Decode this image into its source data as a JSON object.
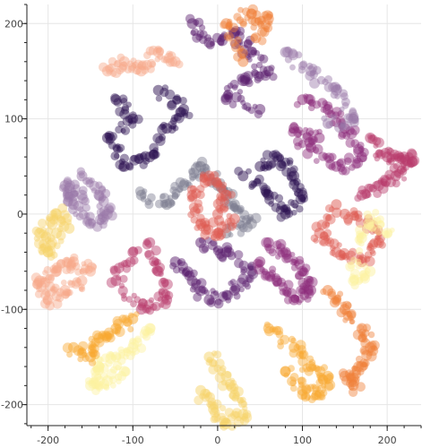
{
  "chart_data": {
    "type": "scatter",
    "title": "",
    "xlabel": "",
    "ylabel": "",
    "xlim": [
      -225,
      240
    ],
    "ylim": [
      -222,
      220
    ],
    "grid": true,
    "legend": "none",
    "x_ticks": [
      {
        "value": -200,
        "label": "-200"
      },
      {
        "value": -100,
        "label": "-100"
      },
      {
        "value": 0,
        "label": "0"
      },
      {
        "value": 100,
        "label": "100"
      },
      {
        "value": 200,
        "label": "200"
      }
    ],
    "y_ticks": [
      {
        "value": 200,
        "label": "200"
      },
      {
        "value": 100,
        "label": "100"
      },
      {
        "value": 0,
        "label": "0"
      },
      {
        "value": -100,
        "label": "-100"
      },
      {
        "value": -200,
        "label": "-200"
      }
    ],
    "colors": {
      "palette": [
        "#2d1152",
        "#5b1f6e",
        "#8c2a7a",
        "#b83a6b",
        "#de5a52",
        "#f0803a",
        "#f8a830",
        "#f6d36a",
        "#fcf2a0",
        "#f7a88a",
        "#9a78a8",
        "#7d7d90"
      ],
      "grid": "#e6e6e6",
      "axis": "#222222"
    },
    "series": [
      {
        "points": [
          [
            -120,
            120
          ],
          [
            -100,
            100
          ],
          [
            -130,
            80
          ],
          [
            -110,
            50
          ],
          [
            -80,
            60
          ],
          [
            -60,
            90
          ],
          [
            -40,
            110
          ],
          [
            -70,
            130
          ]
        ]
      },
      {
        "points": [
          [
            -30,
            200
          ],
          [
            -10,
            180
          ],
          [
            20,
            190
          ],
          [
            40,
            170
          ],
          [
            60,
            150
          ],
          [
            30,
            140
          ],
          [
            10,
            120
          ],
          [
            50,
            110
          ]
        ]
      },
      {
        "points": [
          [
            100,
            120
          ],
          [
            130,
            110
          ],
          [
            150,
            90
          ],
          [
            170,
            60
          ],
          [
            140,
            50
          ],
          [
            110,
            70
          ],
          [
            90,
            90
          ],
          [
            120,
            80
          ]
        ]
      },
      {
        "points": [
          [
            180,
            80
          ],
          [
            200,
            60
          ],
          [
            220,
            60
          ],
          [
            230,
            55
          ],
          [
            210,
            40
          ],
          [
            190,
            30
          ],
          [
            170,
            20
          ]
        ]
      },
      {
        "points": [
          [
            150,
            0
          ],
          [
            180,
            -10
          ],
          [
            190,
            -30
          ],
          [
            170,
            -50
          ],
          [
            140,
            -40
          ],
          [
            120,
            -20
          ],
          [
            140,
            10
          ]
        ]
      },
      {
        "points": [
          [
            130,
            -80
          ],
          [
            150,
            -100
          ],
          [
            170,
            -120
          ],
          [
            180,
            -140
          ],
          [
            170,
            -160
          ],
          [
            160,
            -180
          ],
          [
            150,
            -170
          ]
        ]
      },
      {
        "points": [
          [
            60,
            -120
          ],
          [
            90,
            -140
          ],
          [
            110,
            -160
          ],
          [
            130,
            -170
          ],
          [
            120,
            -190
          ],
          [
            100,
            -185
          ],
          [
            80,
            -165
          ]
        ]
      },
      {
        "points": [
          [
            -10,
            -150
          ],
          [
            10,
            -170
          ],
          [
            20,
            -190
          ],
          [
            30,
            -210
          ],
          [
            10,
            -220
          ],
          [
            -5,
            -205
          ],
          [
            -20,
            -185
          ]
        ]
      },
      {
        "points": [
          [
            -80,
            -120
          ],
          [
            -100,
            -140
          ],
          [
            -120,
            -150
          ],
          [
            -140,
            -160
          ],
          [
            -150,
            -180
          ],
          [
            -130,
            -175
          ],
          [
            -110,
            -165
          ]
        ]
      },
      {
        "points": [
          [
            -150,
            -60
          ],
          [
            -170,
            -50
          ],
          [
            -190,
            -60
          ],
          [
            -210,
            -70
          ],
          [
            -200,
            -90
          ],
          [
            -180,
            -80
          ],
          [
            -160,
            -70
          ]
        ]
      },
      {
        "points": [
          [
            -160,
            20
          ],
          [
            -180,
            30
          ],
          [
            -170,
            10
          ],
          [
            -150,
            -10
          ],
          [
            -130,
            0
          ],
          [
            -140,
            20
          ],
          [
            -160,
            40
          ]
        ]
      },
      {
        "points": [
          [
            -90,
            20
          ],
          [
            -60,
            10
          ],
          [
            -40,
            30
          ],
          [
            -20,
            50
          ],
          [
            0,
            30
          ],
          [
            20,
            10
          ],
          [
            40,
            -10
          ],
          [
            10,
            -20
          ]
        ]
      },
      {
        "points": [
          [
            30,
            40
          ],
          [
            60,
            20
          ],
          [
            80,
            0
          ],
          [
            100,
            20
          ],
          [
            90,
            40
          ],
          [
            70,
            60
          ],
          [
            50,
            50
          ]
        ]
      },
      {
        "points": [
          [
            -50,
            -50
          ],
          [
            -30,
            -70
          ],
          [
            -10,
            -90
          ],
          [
            20,
            -80
          ],
          [
            40,
            -60
          ],
          [
            10,
            -40
          ],
          [
            -20,
            -30
          ]
        ]
      },
      {
        "points": [
          [
            50,
            -50
          ],
          [
            70,
            -70
          ],
          [
            90,
            -90
          ],
          [
            110,
            -80
          ],
          [
            100,
            -60
          ],
          [
            80,
            -40
          ],
          [
            60,
            -30
          ]
        ]
      },
      {
        "points": [
          [
            -100,
            -40
          ],
          [
            -120,
            -70
          ],
          [
            -90,
            -100
          ],
          [
            -60,
            -90
          ],
          [
            -70,
            -60
          ],
          [
            -80,
            -30
          ]
        ]
      },
      {
        "points": [
          [
            0,
            0
          ],
          [
            10,
            20
          ],
          [
            -10,
            40
          ],
          [
            -30,
            20
          ],
          [
            -20,
            -10
          ],
          [
            0,
            -20
          ],
          [
            20,
            -5
          ]
        ]
      },
      {
        "points": [
          [
            30,
            160
          ],
          [
            10,
            200
          ],
          [
            40,
            210
          ],
          [
            60,
            205
          ],
          [
            45,
            185
          ]
        ]
      },
      {
        "points": [
          [
            -170,
            -140
          ],
          [
            -150,
            -150
          ],
          [
            -140,
            -130
          ],
          [
            -120,
            -120
          ],
          [
            -100,
            -110
          ]
        ]
      },
      {
        "points": [
          [
            -190,
            -20
          ],
          [
            -200,
            -40
          ],
          [
            -210,
            -20
          ],
          [
            -190,
            0
          ],
          [
            -175,
            -15
          ]
        ]
      },
      {
        "points": [
          [
            200,
            -20
          ],
          [
            180,
            -5
          ],
          [
            170,
            -25
          ],
          [
            160,
            -70
          ],
          [
            180,
            -60
          ]
        ]
      },
      {
        "points": [
          [
            -130,
            150
          ],
          [
            -110,
            160
          ],
          [
            -90,
            150
          ],
          [
            -70,
            170
          ],
          [
            -50,
            160
          ]
        ]
      },
      {
        "points": [
          [
            80,
            170
          ],
          [
            110,
            150
          ],
          [
            140,
            130
          ],
          [
            160,
            100
          ],
          [
            130,
            95
          ]
        ]
      }
    ]
  }
}
